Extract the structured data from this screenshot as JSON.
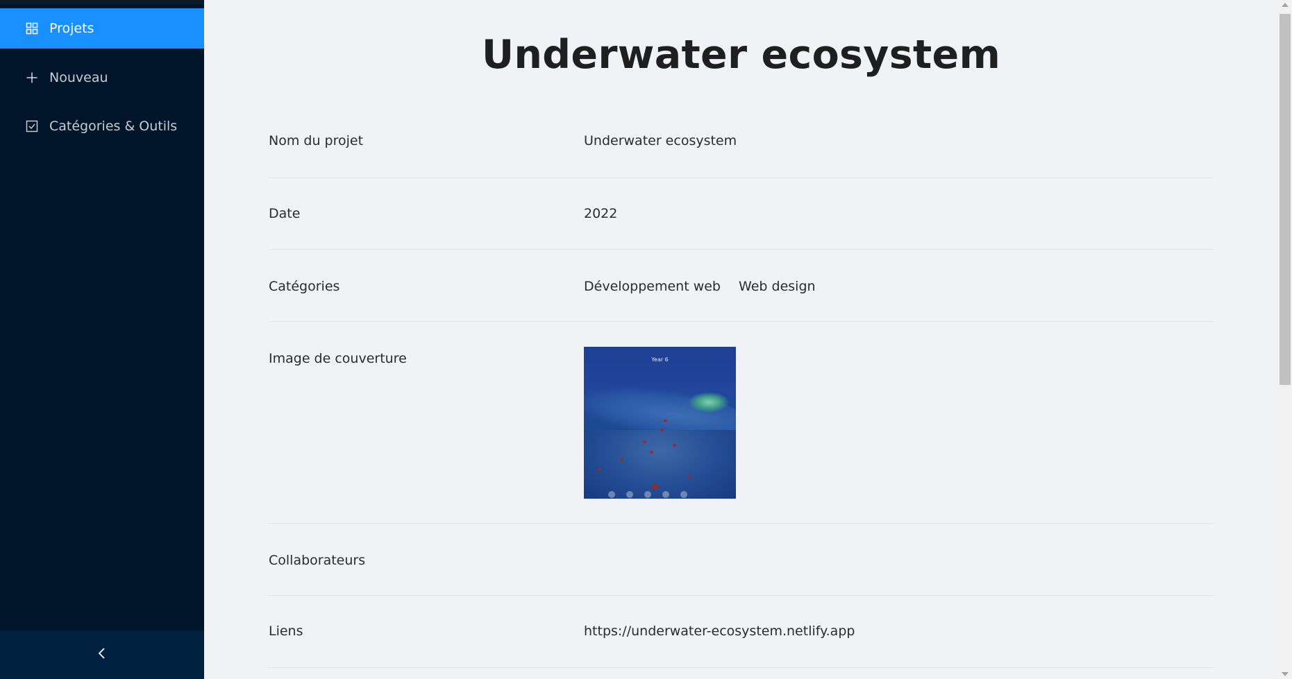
{
  "sidebar": {
    "items": [
      {
        "label": "Projets",
        "icon": "appstore-icon",
        "active": true
      },
      {
        "label": "Nouveau",
        "icon": "plus-icon",
        "active": false
      },
      {
        "label": "Catégories & Outils",
        "icon": "checkbox-icon",
        "active": false
      }
    ],
    "collapse_icon": "chevron-left-icon"
  },
  "page": {
    "title": "Underwater ecosystem"
  },
  "details": {
    "name": {
      "label": "Nom du projet",
      "value": "Underwater ecosystem"
    },
    "date": {
      "label": "Date",
      "value": "2022"
    },
    "categories": {
      "label": "Catégories",
      "values": [
        "Développement web",
        "Web design"
      ]
    },
    "cover": {
      "label": "Image de couverture",
      "image_text": "Year 6"
    },
    "collaborators": {
      "label": "Collaborateurs",
      "value": ""
    },
    "links": {
      "label": "Liens",
      "value": "https://underwater-ecosystem.netlify.app"
    }
  },
  "colors": {
    "sidebar_bg": "#001529",
    "active_item": "#1890ff",
    "page_bg": "#f0f2f5"
  }
}
